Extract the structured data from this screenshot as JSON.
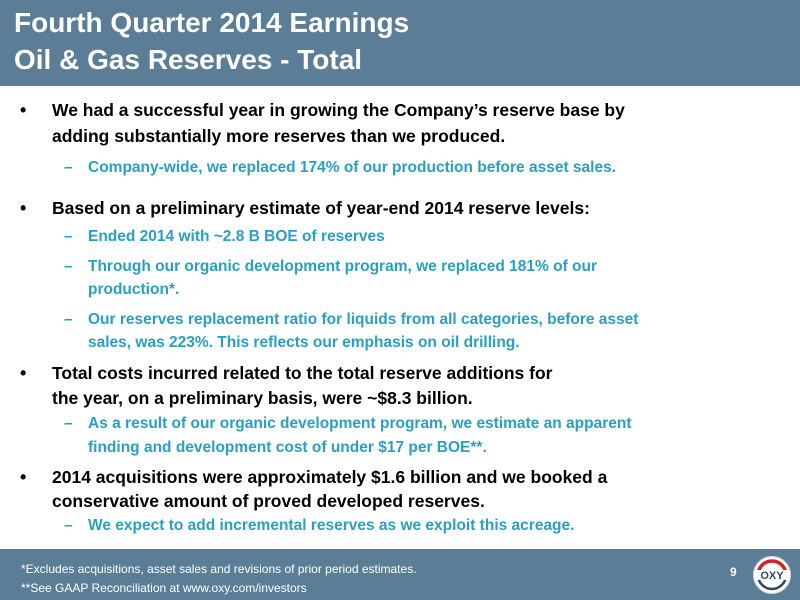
{
  "header": {
    "title_line1": "Fourth Quarter 2014 Earnings",
    "title_line2": "Oil & Gas Reserves - Total"
  },
  "bullets": [
    {
      "lines": [
        "We had a successful year in growing the Company’s reserve base by",
        "adding substantially more reserves than we produced."
      ],
      "subs": [
        {
          "lines": [
            "Company-wide, we replaced 174% of our production before asset sales."
          ]
        }
      ]
    },
    {
      "lines": [
        "Based on a preliminary estimate of year-end 2014 reserve levels:"
      ],
      "subs": [
        {
          "lines": [
            "Ended 2014 with ~2.8 B BOE of reserves"
          ]
        },
        {
          "lines": [
            "Through our organic development program, we replaced 181% of our",
            "production*."
          ]
        },
        {
          "lines": [
            "Our reserves replacement ratio for liquids from all categories, before asset",
            "sales, was 223%.  This reflects our emphasis on oil drilling."
          ]
        }
      ]
    },
    {
      "lines": [
        "Total costs incurred related to the total reserve additions for",
        "the year, on a preliminary basis, were ~$8.3 billion."
      ],
      "subs": [
        {
          "lines": [
            "As a result of our organic development program, we estimate an apparent",
            "finding and development cost of under $17 per BOE**."
          ]
        }
      ]
    },
    {
      "lines": [
        "2014 acquisitions were approximately $1.6 billion and we booked a",
        "conservative amount of proved developed reserves."
      ],
      "subs": [
        {
          "lines": [
            "We expect to add incremental reserves as we exploit this acreage."
          ]
        }
      ]
    }
  ],
  "bullet_symbol": "•",
  "dash_symbol": "–",
  "footer": {
    "note1": "*Excludes acquisitions, asset sales and revisions of prior period estimates.",
    "note2": "**See GAAP Reconciliation at www.oxy.com/investors",
    "page_number": "9",
    "logo_text": "OXY"
  },
  "colors": {
    "header_bg": "#5b7d96",
    "sub_text": "#2a9fc1",
    "logo_red": "#d2232a"
  }
}
